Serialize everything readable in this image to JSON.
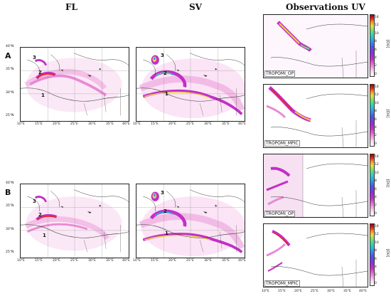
{
  "headers": {
    "fl": "FL",
    "sv": "SV",
    "obs": "Observations UV"
  },
  "rows": {
    "a": "A",
    "b": "B"
  },
  "lat_labels": [
    "40°N",
    "35°N",
    "30°N",
    "25°N"
  ],
  "lon_labels_left": [
    "10°E",
    "15°E",
    "20°E",
    "25°E",
    "30°E",
    "35°E",
    "40°E"
  ],
  "lon_labels_right": [
    "10°E",
    "15°E",
    "20°E",
    "25°E",
    "30°E",
    "35°E",
    "40°E"
  ],
  "plume_numbers": [
    "1",
    "2",
    "3"
  ],
  "panel_labels": [
    "TROPOMI_OP",
    "TROPOMI_MPIC",
    "TROPOMI_OP",
    "TROPOMI_MPIC"
  ],
  "colorbar": {
    "ticks": [
      "14",
      "12",
      "10",
      "8",
      "6",
      "4",
      "2",
      "0"
    ],
    "unit": "[DU]"
  },
  "colors": {
    "low": "#f8d8f0",
    "mid": "#c22fc6",
    "high": "#e8251e",
    "peak": "#8b0a0a"
  }
}
